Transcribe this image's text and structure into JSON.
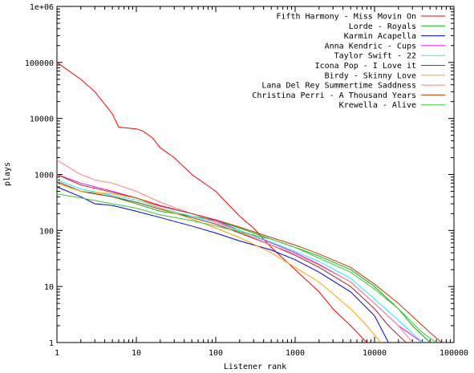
{
  "chart_data": {
    "type": "line",
    "title": "",
    "xlabel": "Listener rank",
    "ylabel": "plays",
    "xscale": "log",
    "yscale": "log",
    "xlim": [
      1,
      100000
    ],
    "ylim": [
      1,
      1000000
    ],
    "grid": false,
    "legend_position": "top-right",
    "x_ticks": [
      "1",
      "10",
      "100",
      "1000",
      "10000",
      "100000"
    ],
    "y_ticks": [
      "1",
      "10",
      "100",
      "1000",
      "10000",
      "100000",
      "1e+06"
    ],
    "series": [
      {
        "name": "Fifth Harmony - Miss Movin On",
        "color": "#ff0000",
        "points": [
          [
            1,
            100000
          ],
          [
            2,
            50000
          ],
          [
            3,
            30000
          ],
          [
            5,
            12000
          ],
          [
            6,
            7000
          ],
          [
            10,
            6500
          ],
          [
            12,
            6000
          ],
          [
            16,
            4500
          ],
          [
            20,
            3000
          ],
          [
            30,
            2000
          ],
          [
            50,
            1000
          ],
          [
            100,
            500
          ],
          [
            200,
            180
          ],
          [
            300,
            110
          ],
          [
            500,
            50
          ],
          [
            1000,
            20
          ],
          [
            2000,
            8
          ],
          [
            3000,
            4
          ],
          [
            5000,
            2
          ],
          [
            8000,
            1
          ]
        ]
      },
      {
        "name": "Lorde - Royals",
        "color": "#00c000",
        "points": [
          [
            1,
            700
          ],
          [
            2,
            500
          ],
          [
            5,
            400
          ],
          [
            10,
            300
          ],
          [
            20,
            220
          ],
          [
            50,
            180
          ],
          [
            100,
            150
          ],
          [
            200,
            110
          ],
          [
            500,
            70
          ],
          [
            1000,
            50
          ],
          [
            2000,
            35
          ],
          [
            5000,
            20
          ],
          [
            10000,
            10
          ],
          [
            20000,
            4
          ],
          [
            30000,
            2
          ],
          [
            50000,
            1
          ]
        ]
      },
      {
        "name": "Karmin Acapella",
        "color": "#0000ff",
        "points": [
          [
            1,
            600
          ],
          [
            2,
            400
          ],
          [
            3,
            300
          ],
          [
            5,
            280
          ],
          [
            10,
            220
          ],
          [
            20,
            170
          ],
          [
            50,
            120
          ],
          [
            100,
            90
          ],
          [
            200,
            65
          ],
          [
            500,
            45
          ],
          [
            1000,
            30
          ],
          [
            2000,
            18
          ],
          [
            5000,
            8
          ],
          [
            10000,
            3
          ],
          [
            15000,
            1
          ]
        ]
      },
      {
        "name": "Anna Kendric - Cups",
        "color": "#ff00ff",
        "points": [
          [
            1,
            1000
          ],
          [
            2,
            700
          ],
          [
            5,
            500
          ],
          [
            10,
            380
          ],
          [
            20,
            270
          ],
          [
            50,
            200
          ],
          [
            100,
            150
          ],
          [
            200,
            100
          ],
          [
            500,
            60
          ],
          [
            1000,
            40
          ],
          [
            2000,
            25
          ],
          [
            5000,
            12
          ],
          [
            10000,
            5
          ],
          [
            20000,
            2
          ],
          [
            40000,
            1
          ]
        ]
      },
      {
        "name": "Taylor Swift - 22",
        "color": "#00ffff",
        "points": [
          [
            1,
            800
          ],
          [
            2,
            550
          ],
          [
            5,
            420
          ],
          [
            10,
            350
          ],
          [
            20,
            250
          ],
          [
            50,
            180
          ],
          [
            100,
            140
          ],
          [
            200,
            100
          ],
          [
            500,
            62
          ],
          [
            1000,
            42
          ],
          [
            2000,
            28
          ],
          [
            5000,
            14
          ],
          [
            10000,
            6
          ],
          [
            20000,
            2.5
          ],
          [
            40000,
            1
          ]
        ]
      },
      {
        "name": "Icona Pop - I Love it",
        "color": "#a52a2a",
        "points": [
          [
            1,
            750
          ],
          [
            2,
            500
          ],
          [
            5,
            400
          ],
          [
            10,
            320
          ],
          [
            20,
            240
          ],
          [
            50,
            170
          ],
          [
            100,
            130
          ],
          [
            200,
            90
          ],
          [
            500,
            55
          ],
          [
            1000,
            36
          ],
          [
            2000,
            22
          ],
          [
            5000,
            10
          ],
          [
            10000,
            4
          ],
          [
            15000,
            2
          ],
          [
            25000,
            1
          ]
        ]
      },
      {
        "name": "Birdy - Skinny Love",
        "color": "#ffa500",
        "points": [
          [
            1,
            700
          ],
          [
            2,
            500
          ],
          [
            5,
            450
          ],
          [
            10,
            380
          ],
          [
            20,
            250
          ],
          [
            50,
            160
          ],
          [
            100,
            110
          ],
          [
            200,
            75
          ],
          [
            500,
            40
          ],
          [
            1000,
            22
          ],
          [
            2000,
            12
          ],
          [
            5000,
            4
          ],
          [
            8000,
            2
          ],
          [
            12000,
            1
          ]
        ]
      },
      {
        "name": "Lana Del Rey Summertime Saddness",
        "color": "#ff8080",
        "points": [
          [
            1,
            1800
          ],
          [
            2,
            1000
          ],
          [
            3,
            800
          ],
          [
            5,
            700
          ],
          [
            10,
            500
          ],
          [
            20,
            320
          ],
          [
            50,
            200
          ],
          [
            100,
            140
          ],
          [
            200,
            95
          ],
          [
            500,
            55
          ],
          [
            1000,
            38
          ],
          [
            2000,
            24
          ],
          [
            5000,
            12
          ],
          [
            10000,
            5
          ],
          [
            20000,
            2
          ],
          [
            30000,
            1
          ]
        ]
      },
      {
        "name": "Christina Perri - A Thousand Years",
        "color": "#cc3300",
        "points": [
          [
            1,
            1000
          ],
          [
            2,
            650
          ],
          [
            5,
            480
          ],
          [
            10,
            380
          ],
          [
            20,
            280
          ],
          [
            50,
            200
          ],
          [
            100,
            155
          ],
          [
            200,
            115
          ],
          [
            500,
            75
          ],
          [
            1000,
            55
          ],
          [
            2000,
            38
          ],
          [
            5000,
            22
          ],
          [
            10000,
            11
          ],
          [
            20000,
            5
          ],
          [
            50000,
            1.5
          ],
          [
            70000,
            1
          ]
        ]
      },
      {
        "name": "Krewella - Alive",
        "color": "#33cc33",
        "points": [
          [
            1,
            450
          ],
          [
            2,
            380
          ],
          [
            5,
            300
          ],
          [
            10,
            250
          ],
          [
            20,
            190
          ],
          [
            50,
            150
          ],
          [
            100,
            120
          ],
          [
            200,
            95
          ],
          [
            500,
            70
          ],
          [
            1000,
            50
          ],
          [
            2000,
            32
          ],
          [
            5000,
            18
          ],
          [
            10000,
            9
          ],
          [
            20000,
            4
          ],
          [
            40000,
            1.5
          ],
          [
            60000,
            1
          ]
        ]
      }
    ]
  }
}
